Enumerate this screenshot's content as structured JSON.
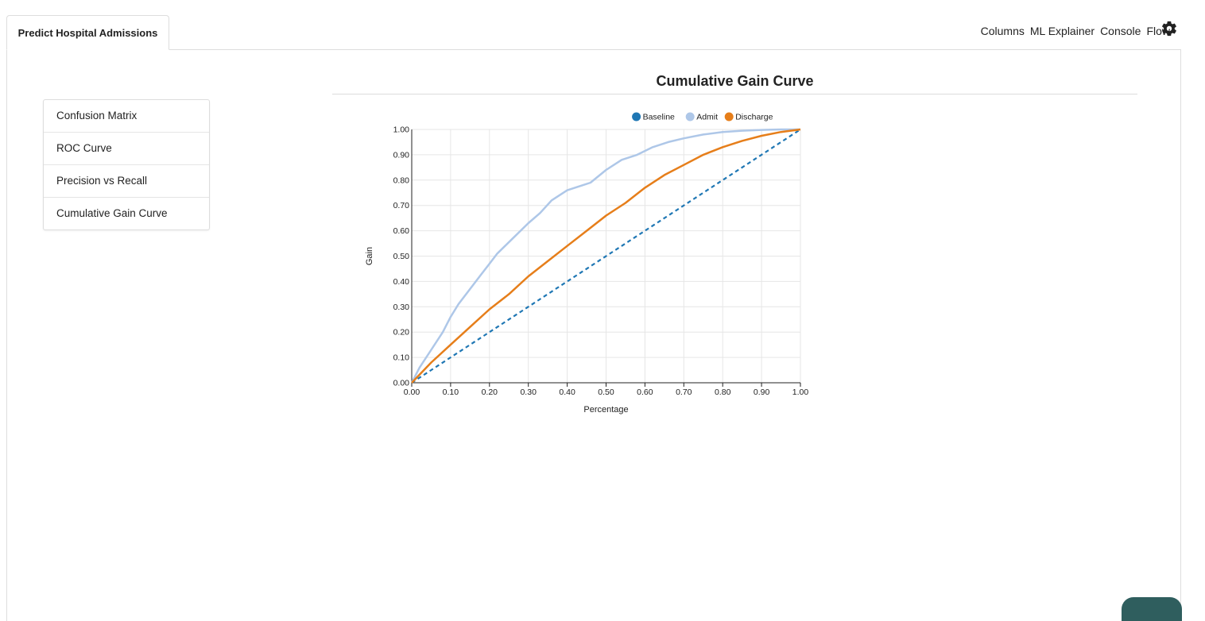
{
  "tabs": [
    {
      "label": "Predict Hospital Admissions"
    }
  ],
  "topnav": {
    "columns": "Columns",
    "ml_explainer": "ML Explainer",
    "console": "Console",
    "flow": "Flow",
    "settings_icon": "gear-icon"
  },
  "sidebar": {
    "items": [
      {
        "label": "Confusion Matrix"
      },
      {
        "label": "ROC Curve"
      },
      {
        "label": "Precision vs Recall"
      },
      {
        "label": "Cumulative Gain Curve"
      }
    ]
  },
  "main": {
    "title": "Cumulative Gain Curve"
  },
  "chart_data": {
    "type": "line",
    "title": "Cumulative Gain Curve",
    "xlabel": "Percentage",
    "ylabel": "Gain",
    "xlim": [
      0,
      1
    ],
    "ylim": [
      0,
      1
    ],
    "xticks": [
      "0.00",
      "0.10",
      "0.20",
      "0.30",
      "0.40",
      "0.50",
      "0.60",
      "0.70",
      "0.80",
      "0.90",
      "1.00"
    ],
    "yticks": [
      "0.00",
      "0.10",
      "0.20",
      "0.30",
      "0.40",
      "0.50",
      "0.60",
      "0.70",
      "0.80",
      "0.90",
      "1.00"
    ],
    "grid": true,
    "legend_position": "top-right",
    "series": [
      {
        "name": "Baseline",
        "color": "#1f77b4",
        "dashed": true,
        "x": [
          0,
          1
        ],
        "y": [
          0,
          1
        ]
      },
      {
        "name": "Admit",
        "color": "#aec7e8",
        "dashed": false,
        "x": [
          0,
          0.02,
          0.05,
          0.08,
          0.1,
          0.12,
          0.15,
          0.18,
          0.2,
          0.22,
          0.24,
          0.26,
          0.28,
          0.3,
          0.33,
          0.36,
          0.4,
          0.44,
          0.46,
          0.5,
          0.54,
          0.58,
          0.62,
          0.66,
          0.7,
          0.75,
          0.8,
          0.85,
          0.9,
          0.95,
          1.0
        ],
        "y": [
          0,
          0.06,
          0.13,
          0.2,
          0.26,
          0.31,
          0.37,
          0.43,
          0.47,
          0.51,
          0.54,
          0.57,
          0.6,
          0.63,
          0.67,
          0.72,
          0.76,
          0.78,
          0.79,
          0.84,
          0.88,
          0.9,
          0.93,
          0.95,
          0.965,
          0.98,
          0.99,
          0.995,
          0.998,
          1.0,
          1.0
        ]
      },
      {
        "name": "Discharge",
        "color": "#e67e1a",
        "dashed": false,
        "x": [
          0,
          0.05,
          0.1,
          0.15,
          0.2,
          0.25,
          0.3,
          0.35,
          0.4,
          0.45,
          0.5,
          0.55,
          0.6,
          0.65,
          0.7,
          0.75,
          0.8,
          0.85,
          0.9,
          0.95,
          1.0
        ],
        "y": [
          0,
          0.08,
          0.15,
          0.22,
          0.29,
          0.35,
          0.42,
          0.48,
          0.54,
          0.6,
          0.66,
          0.71,
          0.77,
          0.82,
          0.86,
          0.9,
          0.93,
          0.955,
          0.975,
          0.99,
          1.0
        ]
      }
    ]
  }
}
